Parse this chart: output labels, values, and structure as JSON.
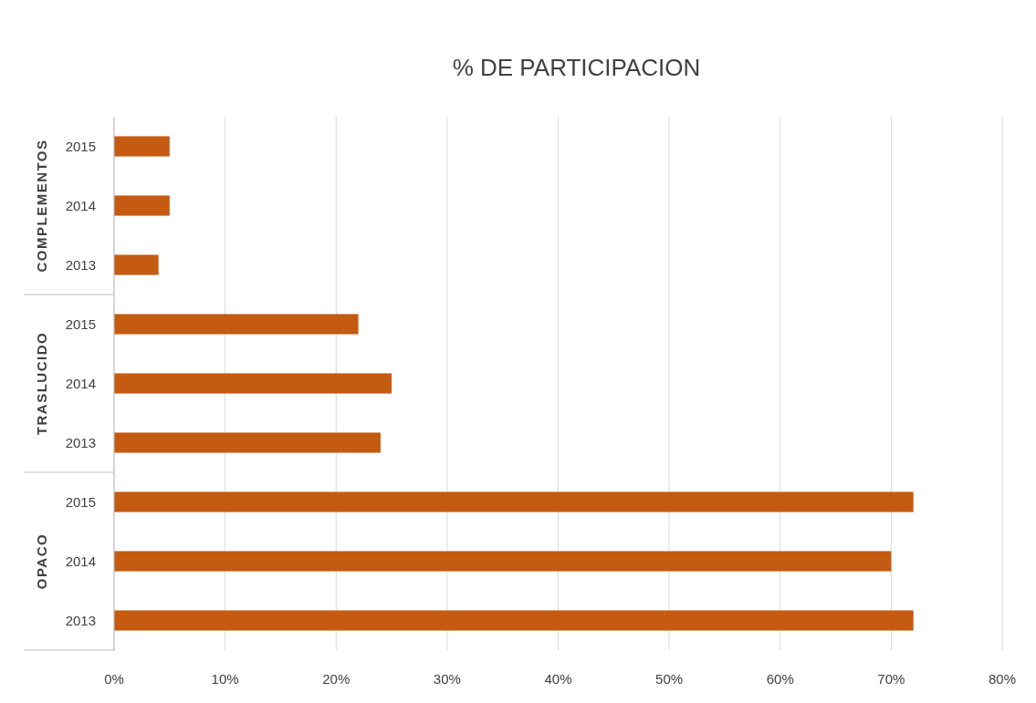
{
  "chart_data": {
    "type": "bar",
    "orientation": "horizontal",
    "title": "% DE PARTICIPACION",
    "categories": [
      "2015",
      "2014",
      "2013",
      "2015",
      "2014",
      "2013",
      "2015",
      "2014",
      "2013"
    ],
    "values": [
      5,
      5,
      4,
      22,
      25,
      24,
      72,
      70,
      72
    ],
    "color": "#c55a11",
    "xlim": [
      0,
      80
    ],
    "xticks": [
      {
        "value": 0,
        "label": "0%"
      },
      {
        "value": 10,
        "label": "10%"
      },
      {
        "value": 20,
        "label": "20%"
      },
      {
        "value": 30,
        "label": "30%"
      },
      {
        "value": 40,
        "label": "40%"
      },
      {
        "value": 50,
        "label": "50%"
      },
      {
        "value": 60,
        "label": "60%"
      },
      {
        "value": 70,
        "label": "70%"
      },
      {
        "value": 80,
        "label": "80%"
      }
    ],
    "grid": "x",
    "annotations": [
      "COMPLEMENTOS",
      "TRASLUCIDO",
      "OPACO"
    ]
  }
}
